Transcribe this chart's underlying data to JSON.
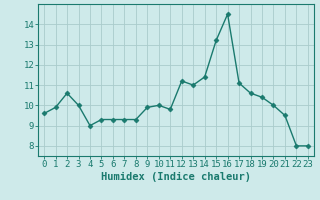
{
  "x": [
    0,
    1,
    2,
    3,
    4,
    5,
    6,
    7,
    8,
    9,
    10,
    11,
    12,
    13,
    14,
    15,
    16,
    17,
    18,
    19,
    20,
    21,
    22,
    23
  ],
  "y": [
    9.6,
    9.9,
    10.6,
    10.0,
    9.0,
    9.3,
    9.3,
    9.3,
    9.3,
    9.9,
    10.0,
    9.8,
    11.2,
    11.0,
    11.4,
    13.2,
    14.5,
    11.1,
    10.6,
    10.4,
    10.0,
    9.5,
    8.0,
    8.0
  ],
  "line_color": "#1a7a6e",
  "marker": "D",
  "markersize": 2.5,
  "linewidth": 1.0,
  "bg_color": "#ceeaea",
  "grid_color": "#aacccc",
  "xlabel": "Humidex (Indice chaleur)",
  "ylim": [
    7.5,
    15.0
  ],
  "xlim": [
    -0.5,
    23.5
  ],
  "yticks": [
    8,
    9,
    10,
    11,
    12,
    13,
    14
  ],
  "xticks": [
    0,
    1,
    2,
    3,
    4,
    5,
    6,
    7,
    8,
    9,
    10,
    11,
    12,
    13,
    14,
    15,
    16,
    17,
    18,
    19,
    20,
    21,
    22,
    23
  ],
  "tick_color": "#1a7a6e",
  "label_color": "#1a7a6e",
  "xlabel_fontsize": 7.5,
  "tick_fontsize": 6.5
}
